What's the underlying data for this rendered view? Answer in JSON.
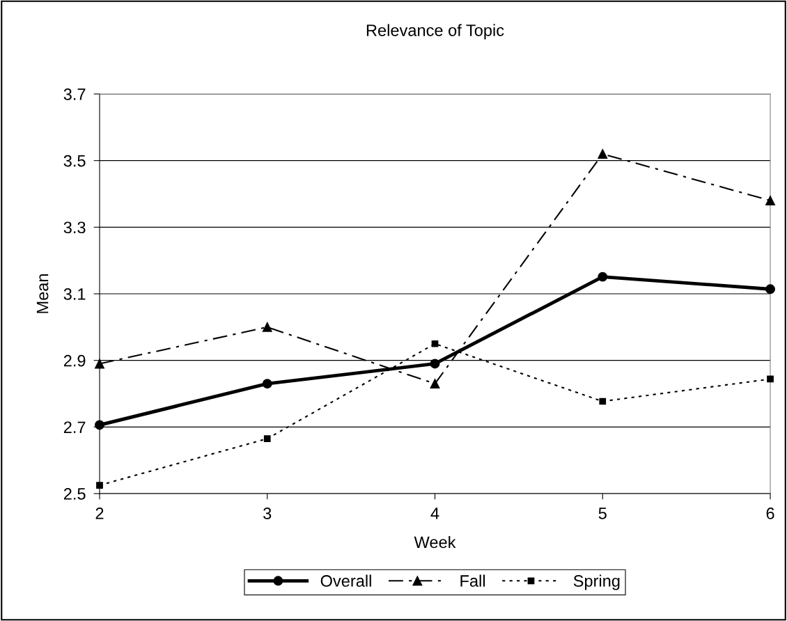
{
  "chart_data": {
    "type": "line",
    "title": "Relevance of Topic",
    "xlabel": "Week",
    "ylabel": "Mean",
    "x": [
      2,
      3,
      4,
      5,
      6
    ],
    "xlim": [
      2,
      6
    ],
    "xticks": [
      2,
      3,
      4,
      5,
      6
    ],
    "ylim": [
      2.5,
      3.7
    ],
    "yticks": [
      {
        "value": 2.5,
        "label": "2.5"
      },
      {
        "value": 2.7,
        "label": "2.7"
      },
      {
        "value": 2.9,
        "label": "2.9"
      },
      {
        "value": 3.1,
        "label": "3.1"
      },
      {
        "value": 3.3,
        "label": "3.3"
      },
      {
        "value": 3.5,
        "label": "3.5"
      },
      {
        "value": 3.7,
        "label": "3.7"
      }
    ],
    "grid": "y",
    "legend": "bottom",
    "series": [
      {
        "name": "Overall",
        "color": "#000000",
        "marker": "circle",
        "line_style": "solid",
        "values": [
          2.706,
          2.83,
          2.89,
          3.151,
          3.114
        ]
      },
      {
        "name": "Fall",
        "color": "#000000",
        "marker": "triangle",
        "line_style": "dashdot",
        "values": [
          2.89,
          3.0,
          2.83,
          3.52,
          3.38
        ]
      },
      {
        "name": "Spring",
        "color": "#000000",
        "marker": "square",
        "line_style": "dotted",
        "values": [
          2.525,
          2.665,
          2.95,
          2.777,
          2.844
        ]
      }
    ]
  }
}
